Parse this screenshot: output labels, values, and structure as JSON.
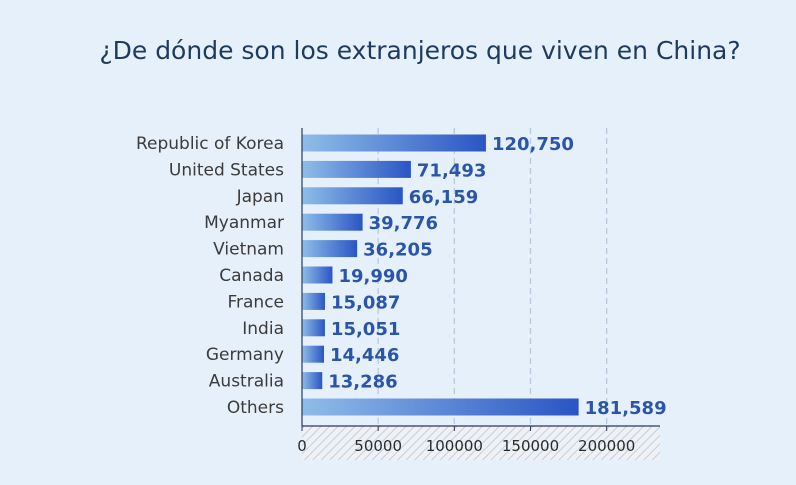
{
  "chart_data": {
    "type": "bar",
    "orientation": "horizontal",
    "title": "¿De dónde son los extranjeros que viven en China?",
    "categories": [
      "Republic of Korea",
      "United States",
      "Japan",
      "Myanmar",
      "Vietnam",
      "Canada",
      "France",
      "India",
      "Germany",
      "Australia",
      "Others"
    ],
    "values": [
      120750,
      71493,
      66159,
      39776,
      36205,
      19990,
      15087,
      15051,
      14446,
      13286,
      181589
    ],
    "value_labels": [
      "120,750",
      "71,493",
      "66,159",
      "39,776",
      "36,205",
      "19,990",
      "15,087",
      "15,051",
      "14,446",
      "13,286",
      "181,589"
    ],
    "xticks": [
      0,
      50000,
      100000,
      150000,
      200000
    ],
    "xtick_labels": [
      "0",
      "50000",
      "100000",
      "150000",
      "200000"
    ],
    "xlim": [
      0,
      235000
    ],
    "xlabel": "",
    "ylabel": "",
    "grid": true,
    "legend": "none",
    "colors": {
      "bar_start": "#8fbde8",
      "bar_end": "#2a55c4",
      "value_text": "#2a55a8",
      "title_text": "#1e3a5c",
      "grid": "#b9c9dc",
      "background": "#e6f0fb"
    }
  }
}
